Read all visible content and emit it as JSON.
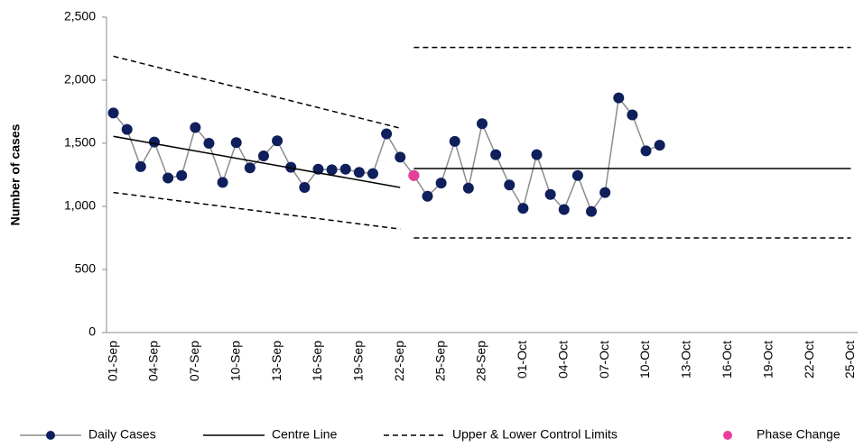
{
  "chart_data": {
    "type": "control",
    "y_label": "Number of cases",
    "categories": [
      "01-Sep",
      null,
      null,
      "04-Sep",
      null,
      null,
      "07-Sep",
      null,
      null,
      "10-Sep",
      null,
      null,
      "13-Sep",
      null,
      null,
      "16-Sep",
      null,
      null,
      "19-Sep",
      null,
      null,
      "22-Sep",
      null,
      null,
      "25-Sep",
      null,
      null,
      "28-Sep",
      null,
      null,
      "01-Oct",
      null,
      null,
      "04-Oct",
      null,
      null,
      "07-Oct",
      null,
      null,
      "10-Oct",
      null,
      null,
      "13-Oct",
      null,
      null,
      "16-Oct",
      null,
      null,
      "19-Oct",
      null,
      null,
      "22-Oct",
      null,
      null,
      "25-Oct"
    ],
    "ylim": [
      0,
      2500
    ],
    "yticks": [
      0,
      500,
      {
        "value": 1000,
        "label": "1,000"
      },
      {
        "value": 1500,
        "label": "1,500"
      },
      {
        "value": 2000,
        "label": "2,000"
      },
      {
        "value": 2500,
        "label": "2,500"
      }
    ],
    "series": [
      {
        "name": "Daily Cases",
        "style": "line-marker",
        "color": "#8c8c8c",
        "marker_color": "#0f1f5c",
        "values": [
          1740,
          1610,
          1315,
          1510,
          1225,
          1245,
          1625,
          1500,
          1190,
          1505,
          1305,
          1400,
          1520,
          1310,
          1150,
          1295,
          1290,
          1295,
          1270,
          1260,
          1575,
          1390,
          1245,
          1080,
          1185,
          1515,
          1145,
          1655,
          1410,
          1170,
          985,
          1410,
          1095,
          975,
          1245,
          960,
          1110,
          1860,
          1725,
          1440,
          1485,
          null,
          null,
          null,
          null,
          null,
          null,
          null,
          null,
          null,
          null,
          null,
          null,
          null,
          null
        ]
      },
      {
        "name": "Centre Line",
        "style": "solid",
        "color": "#000000",
        "segments": [
          {
            "x": [
              "01-Sep",
              "22-Sep"
            ],
            "values": [
              1555,
              1150
            ]
          },
          {
            "x": [
              "23-Sep",
              "25-Oct"
            ],
            "values": [
              1300,
              1300
            ]
          }
        ]
      },
      {
        "name": "Upper & Lower Control Limits",
        "style": "dashed",
        "color": "#000000",
        "segments": [
          {
            "x": [
              "01-Sep",
              "22-Sep"
            ],
            "values": [
              2190,
              1620
            ]
          },
          {
            "x": [
              "01-Sep",
              "22-Sep"
            ],
            "values": [
              1110,
              820
            ]
          },
          {
            "x": [
              "23-Sep",
              "25-Oct"
            ],
            "values": [
              2260,
              2260
            ]
          },
          {
            "x": [
              "23-Sep",
              "25-Oct"
            ],
            "values": [
              750,
              750
            ]
          }
        ]
      },
      {
        "name": "Phase Change",
        "style": "marker",
        "color": "#e8409a",
        "values": [
          null,
          null,
          null,
          null,
          null,
          null,
          null,
          null,
          null,
          null,
          null,
          null,
          null,
          null,
          null,
          null,
          null,
          null,
          null,
          null,
          null,
          null,
          1245,
          null,
          null,
          null,
          null,
          null,
          null,
          null,
          null,
          null,
          null,
          null,
          null,
          null,
          null,
          null,
          null,
          null,
          null,
          null,
          null,
          null,
          null,
          null,
          null,
          null,
          null,
          null,
          null,
          null,
          null,
          null,
          null
        ]
      }
    ]
  }
}
